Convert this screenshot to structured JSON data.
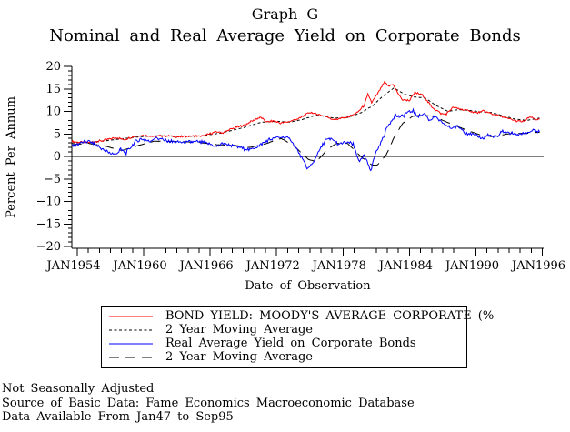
{
  "page": {
    "background": "#ffffff"
  },
  "title": "Graph G",
  "subtitle": "Nominal and Real Average Yield on Corporate Bonds",
  "footnotes": {
    "line1": "Not Seasonally Adjusted",
    "line2": "Source of Basic Data: Fame Economics Macroeconomic Database",
    "line3": "Data Available From Jan47 to Sep95"
  },
  "chart_data": {
    "type": "line",
    "title": "Graph G",
    "subtitle": "Nominal and Real Average Yield on Corporate Bonds",
    "xlabel": "Date of Observation",
    "ylabel": "Percent Per Annum",
    "ylim": [
      -20,
      20
    ],
    "y_major_ticks": [
      20,
      15,
      10,
      5,
      0,
      -5,
      -10,
      -15,
      -20
    ],
    "y_minor_step": 1,
    "x_domain": [
      1953.5,
      1996.05
    ],
    "x_major_ticks": [
      {
        "year": 1954,
        "label": "JAN1954"
      },
      {
        "year": 1960,
        "label": "JAN1960"
      },
      {
        "year": 1966,
        "label": "JAN1966"
      },
      {
        "year": 1972,
        "label": "JAN1972"
      },
      {
        "year": 1978,
        "label": "JAN1978"
      },
      {
        "year": 1984,
        "label": "JAN1984"
      },
      {
        "year": 1990,
        "label": "JAN1990"
      },
      {
        "year": 1996,
        "label": "JAN1996"
      }
    ],
    "x_minor_step_years": 1,
    "zero_line": true,
    "legend_position": "bottom",
    "colors": {
      "nominal": "#ff0000",
      "real": "#0000ff",
      "moving_average": "#000000"
    },
    "series": [
      {
        "name": "BOND YIELD: MOODY'S AVERAGE CORPORATE (%",
        "color": "#ff0000",
        "dash": "solid",
        "noise": 0.22,
        "points": [
          [
            1953.5,
            3.3
          ],
          [
            1954.5,
            3.1
          ],
          [
            1955.5,
            3.2
          ],
          [
            1956.5,
            3.6
          ],
          [
            1957.6,
            4.2
          ],
          [
            1958.2,
            3.7
          ],
          [
            1959.2,
            4.5
          ],
          [
            1960,
            4.7
          ],
          [
            1961,
            4.4
          ],
          [
            1962,
            4.6
          ],
          [
            1963,
            4.3
          ],
          [
            1964,
            4.5
          ],
          [
            1965.3,
            4.5
          ],
          [
            1966.6,
            5.5
          ],
          [
            1967.1,
            5.2
          ],
          [
            1968,
            6.2
          ],
          [
            1969,
            6.9
          ],
          [
            1970.5,
            8.7
          ],
          [
            1971.2,
            7.6
          ],
          [
            1971.7,
            7.9
          ],
          [
            1972.3,
            7.4
          ],
          [
            1973,
            7.6
          ],
          [
            1974,
            8.4
          ],
          [
            1975,
            9.8
          ],
          [
            1976.3,
            9.0
          ],
          [
            1977.2,
            8.2
          ],
          [
            1978.5,
            8.8
          ],
          [
            1979.3,
            9.7
          ],
          [
            1979.9,
            11.3
          ],
          [
            1980.25,
            13.8
          ],
          [
            1980.6,
            11.9
          ],
          [
            1981.1,
            13.9
          ],
          [
            1981.75,
            16.5
          ],
          [
            1982.1,
            15.6
          ],
          [
            1982.5,
            16.0
          ],
          [
            1983.3,
            12.6
          ],
          [
            1984,
            12.4
          ],
          [
            1984.5,
            14.2
          ],
          [
            1985.2,
            13.6
          ],
          [
            1986,
            11.0
          ],
          [
            1986.8,
            9.6
          ],
          [
            1987.3,
            9.4
          ],
          [
            1987.9,
            10.9
          ],
          [
            1988.6,
            10.5
          ],
          [
            1989.4,
            10.1
          ],
          [
            1990.1,
            9.7
          ],
          [
            1990.7,
            10.1
          ],
          [
            1991.5,
            9.4
          ],
          [
            1992.5,
            8.7
          ],
          [
            1993.6,
            7.9
          ],
          [
            1994.3,
            7.7
          ],
          [
            1994.9,
            8.8
          ],
          [
            1995.4,
            8.3
          ],
          [
            1995.75,
            8.2
          ]
        ]
      },
      {
        "name": "2 Year Moving Average",
        "color": "#000000",
        "dash": "short",
        "noise": 0.04,
        "points": [
          [
            1953.5,
            3.0
          ],
          [
            1955,
            3.1
          ],
          [
            1957,
            3.6
          ],
          [
            1959,
            4.2
          ],
          [
            1961,
            4.6
          ],
          [
            1963,
            4.5
          ],
          [
            1965,
            4.5
          ],
          [
            1967,
            5.2
          ],
          [
            1969,
            6.4
          ],
          [
            1970.6,
            7.6
          ],
          [
            1972,
            7.8
          ],
          [
            1973.2,
            7.6
          ],
          [
            1974.3,
            8.2
          ],
          [
            1975.6,
            9.2
          ],
          [
            1977.2,
            8.5
          ],
          [
            1978.5,
            8.7
          ],
          [
            1979.7,
            9.8
          ],
          [
            1980.7,
            11.3
          ],
          [
            1981.6,
            13.4
          ],
          [
            1982.6,
            15.2
          ],
          [
            1983.5,
            13.9
          ],
          [
            1984.4,
            13.2
          ],
          [
            1985.4,
            13.0
          ],
          [
            1986.4,
            11.3
          ],
          [
            1987.5,
            10.0
          ],
          [
            1988.5,
            10.4
          ],
          [
            1989.5,
            10.2
          ],
          [
            1990.5,
            9.9
          ],
          [
            1991.5,
            9.7
          ],
          [
            1992.5,
            9.0
          ],
          [
            1993.5,
            8.3
          ],
          [
            1994.6,
            8.0
          ],
          [
            1995.75,
            8.5
          ]
        ]
      },
      {
        "name": "Real Average Yield on Corporate Bonds",
        "color": "#0000ff",
        "dash": "solid",
        "noise": 0.4,
        "points": [
          [
            1953.5,
            2.3
          ],
          [
            1954.2,
            2.9
          ],
          [
            1955,
            3.4
          ],
          [
            1955.7,
            2.6
          ],
          [
            1956.5,
            1.3
          ],
          [
            1957.4,
            0.3
          ],
          [
            1957.9,
            1.5
          ],
          [
            1958.4,
            0.8
          ],
          [
            1959.2,
            3.2
          ],
          [
            1959.8,
            3.9
          ],
          [
            1960.5,
            3.3
          ],
          [
            1961.1,
            4.1
          ],
          [
            1961.9,
            3.5
          ],
          [
            1962.8,
            3.2
          ],
          [
            1963.8,
            3.1
          ],
          [
            1964.8,
            3.3
          ],
          [
            1965.6,
            3.0
          ],
          [
            1966.5,
            2.2
          ],
          [
            1967.2,
            2.9
          ],
          [
            1968,
            2.4
          ],
          [
            1968.8,
            1.9
          ],
          [
            1969.6,
            1.5
          ],
          [
            1970.4,
            2.3
          ],
          [
            1971.2,
            3.6
          ],
          [
            1972,
            4.1
          ],
          [
            1972.7,
            4.4
          ],
          [
            1973.3,
            3.7
          ],
          [
            1974.2,
            0.0
          ],
          [
            1974.8,
            -2.7
          ],
          [
            1975.2,
            -1.8
          ],
          [
            1975.9,
            1.5
          ],
          [
            1976.4,
            3.6
          ],
          [
            1977,
            3.9
          ],
          [
            1977.6,
            2.6
          ],
          [
            1978.2,
            3.2
          ],
          [
            1978.9,
            2.7
          ],
          [
            1979.5,
            -1.3
          ],
          [
            1979.9,
            0.3
          ],
          [
            1980.5,
            -3.0
          ],
          [
            1980.9,
            0.5
          ],
          [
            1981.5,
            3.5
          ],
          [
            1982,
            6.5
          ],
          [
            1982.7,
            9.2
          ],
          [
            1983.2,
            8.7
          ],
          [
            1983.8,
            9.7
          ],
          [
            1984.3,
            10.2
          ],
          [
            1984.8,
            8.8
          ],
          [
            1985.4,
            9.5
          ],
          [
            1985.8,
            8.0
          ],
          [
            1986.3,
            8.8
          ],
          [
            1987,
            7.3
          ],
          [
            1987.7,
            6.3
          ],
          [
            1988.4,
            6.6
          ],
          [
            1989.1,
            5.3
          ],
          [
            1989.9,
            4.7
          ],
          [
            1990.6,
            4.0
          ],
          [
            1991.1,
            4.8
          ],
          [
            1991.9,
            4.2
          ],
          [
            1992.4,
            5.6
          ],
          [
            1993.1,
            5.2
          ],
          [
            1993.9,
            4.9
          ],
          [
            1994.6,
            5.3
          ],
          [
            1995.2,
            5.7
          ],
          [
            1995.75,
            5.4
          ]
        ]
      },
      {
        "name": "2 Year Moving Average",
        "color": "#000000",
        "dash": "long",
        "noise": 0.04,
        "points": [
          [
            1953.5,
            2.6
          ],
          [
            1955,
            2.9
          ],
          [
            1956.5,
            2.3
          ],
          [
            1958,
            1.3
          ],
          [
            1959.6,
            2.5
          ],
          [
            1961,
            3.4
          ],
          [
            1963,
            3.3
          ],
          [
            1965,
            3.1
          ],
          [
            1966.6,
            2.6
          ],
          [
            1968,
            2.5
          ],
          [
            1969.6,
            2.0
          ],
          [
            1971,
            2.8
          ],
          [
            1972.4,
            4.0
          ],
          [
            1973.5,
            2.5
          ],
          [
            1974.9,
            -0.7
          ],
          [
            1975.6,
            -1.2
          ],
          [
            1976.6,
            1.6
          ],
          [
            1977.4,
            2.9
          ],
          [
            1978.4,
            2.9
          ],
          [
            1979.6,
            0.0
          ],
          [
            1980.6,
            -1.9
          ],
          [
            1981.1,
            -1.9
          ],
          [
            1981.9,
            0.3
          ],
          [
            1982.6,
            4.2
          ],
          [
            1983.4,
            7.4
          ],
          [
            1984.3,
            8.9
          ],
          [
            1985.1,
            9.2
          ],
          [
            1986.2,
            8.9
          ],
          [
            1987.3,
            7.7
          ],
          [
            1988.3,
            6.7
          ],
          [
            1989.3,
            5.7
          ],
          [
            1990.4,
            4.8
          ],
          [
            1991.4,
            4.4
          ],
          [
            1992.4,
            4.8
          ],
          [
            1993.4,
            5.2
          ],
          [
            1994.4,
            5.1
          ],
          [
            1995.75,
            5.4
          ]
        ]
      }
    ]
  }
}
